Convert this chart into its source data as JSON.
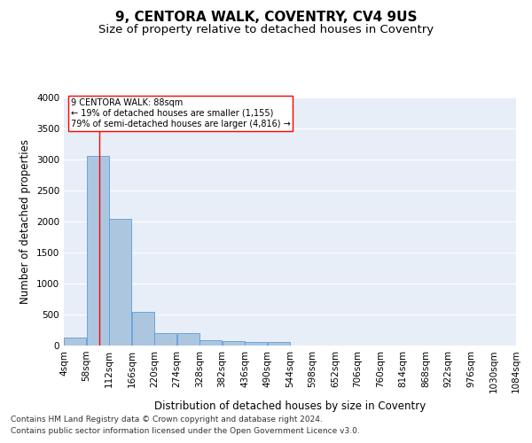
{
  "title1": "9, CENTORA WALK, COVENTRY, CV4 9US",
  "title2": "Size of property relative to detached houses in Coventry",
  "xlabel": "Distribution of detached houses by size in Coventry",
  "ylabel": "Number of detached properties",
  "footnote1": "Contains HM Land Registry data © Crown copyright and database right 2024.",
  "footnote2": "Contains public sector information licensed under the Open Government Licence v3.0.",
  "annotation_line1": "9 CENTORA WALK: 88sqm",
  "annotation_line2": "← 19% of detached houses are smaller (1,155)",
  "annotation_line3": "79% of semi-detached houses are larger (4,816) →",
  "bar_color": "#adc6e0",
  "bar_edge_color": "#5b9bd5",
  "red_line_x": 88,
  "bins": [
    4,
    58,
    112,
    166,
    220,
    274,
    328,
    382,
    436,
    490,
    544,
    598,
    652,
    706,
    760,
    814,
    868,
    922,
    976,
    1030,
    1084
  ],
  "bar_heights": [
    130,
    3050,
    2050,
    550,
    200,
    200,
    80,
    70,
    60,
    60,
    0,
    0,
    0,
    0,
    0,
    0,
    0,
    0,
    0,
    0
  ],
  "ylim": [
    0,
    4000
  ],
  "yticks": [
    0,
    500,
    1000,
    1500,
    2000,
    2500,
    3000,
    3500,
    4000
  ],
  "bg_color": "#e8eef7",
  "grid_color": "#ffffff",
  "title1_fontsize": 11,
  "title2_fontsize": 9.5,
  "axis_label_fontsize": 8.5,
  "tick_fontsize": 7.5,
  "footnote_fontsize": 6.5
}
